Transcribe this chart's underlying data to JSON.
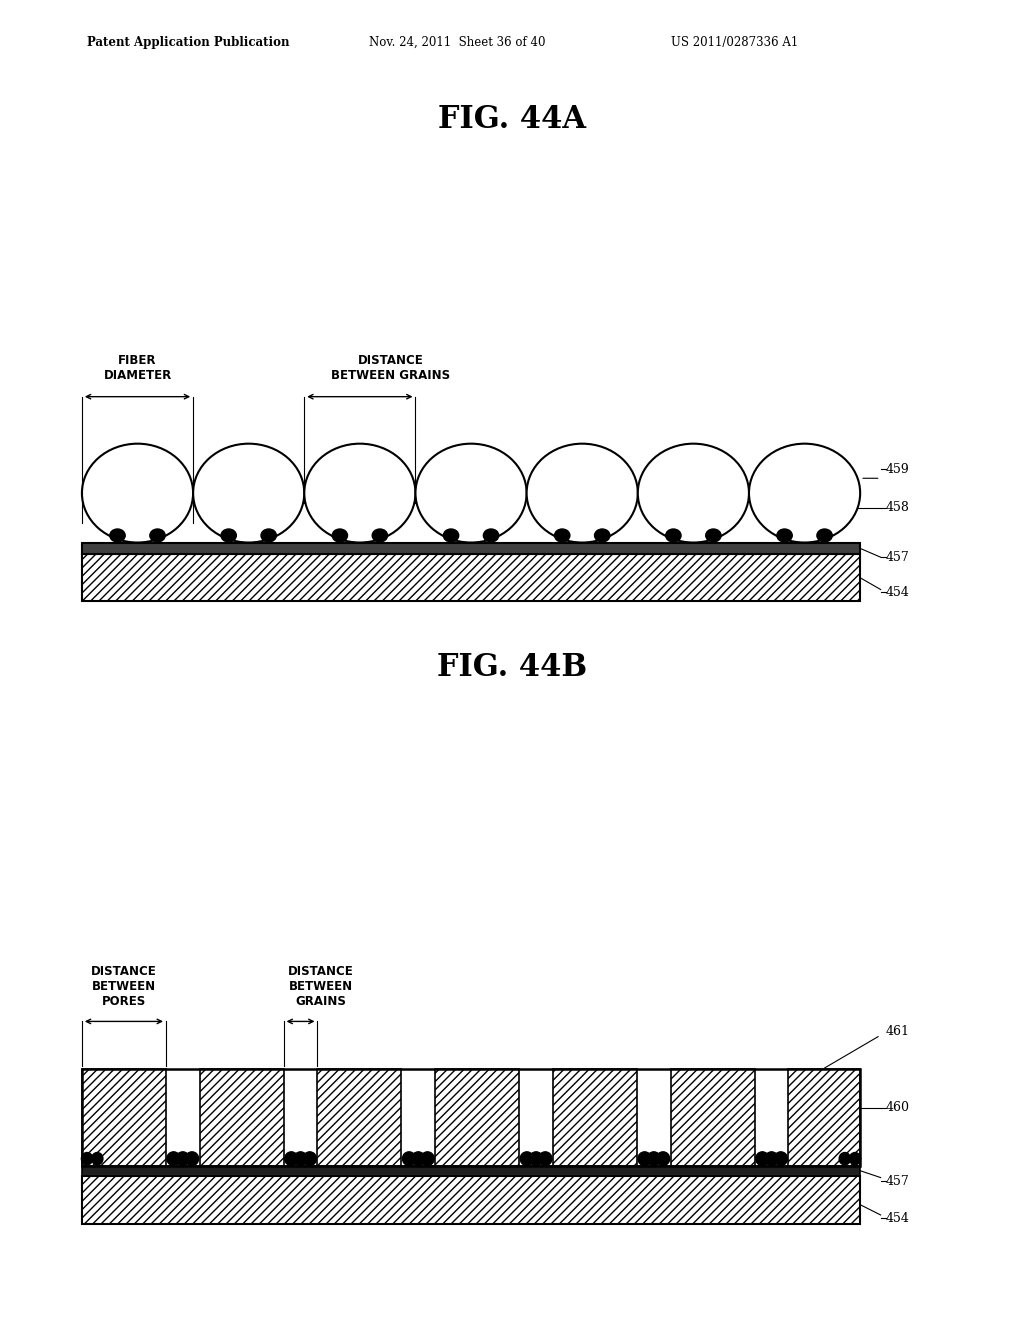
{
  "bg_color": "#ffffff",
  "fig_title_a": "FIG. 44A",
  "fig_title_b": "FIG. 44B",
  "header_left": "Patent Application Publication",
  "header_mid": "Nov. 24, 2011  Sheet 36 of 40",
  "header_right": "US 2011/0287336 A1",
  "label_fiber_diameter": "FIBER\nDIAMETER",
  "label_distance_between_grains_a": "DISTANCE\nBETWEEN GRAINS",
  "label_distance_between_pores": "DISTANCE\nBETWEEN\nPORES",
  "label_distance_between_grains_b": "DISTANCE\nBETWEEN\nGRAINS",
  "ref_459": "459",
  "ref_458": "458",
  "ref_457_a": "457",
  "ref_454_a": "454",
  "ref_461": "461",
  "ref_460": "460",
  "ref_457_b": "457",
  "ref_454_b": "454",
  "hatch_pattern": "////",
  "line_color": "#000000"
}
